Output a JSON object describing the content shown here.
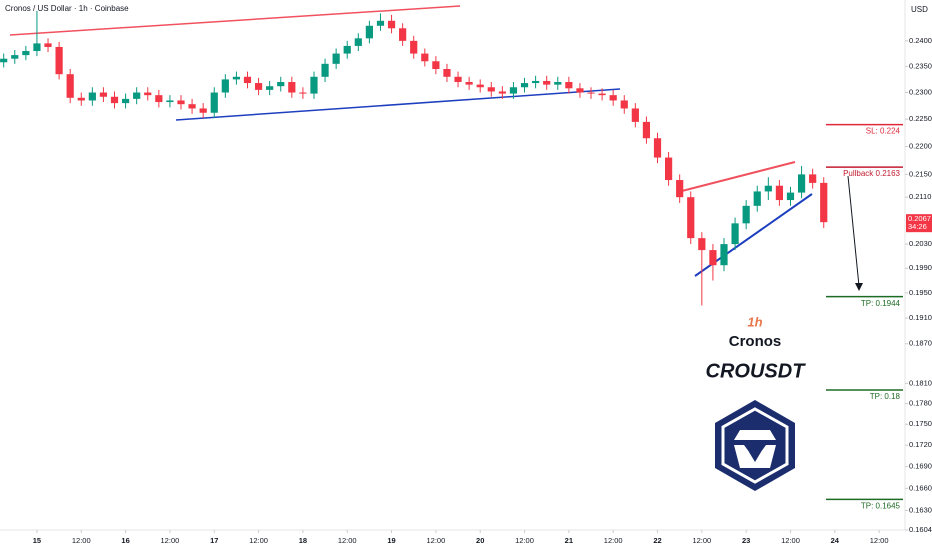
{
  "chart_data": {
    "type": "candlestick",
    "title": "Cronos / US Dollar · 1h · Coinbase",
    "currency": "USD",
    "log_scale": true,
    "up_color": "#089981",
    "down_color": "#f23645",
    "x": [
      -9,
      -6,
      -3,
      0,
      3,
      6,
      9,
      12,
      15,
      18,
      21,
      24,
      27,
      30,
      33,
      36,
      39,
      42,
      45,
      48,
      51,
      54,
      57,
      60,
      63,
      66,
      69,
      72,
      75,
      78,
      81,
      84,
      87,
      90,
      93,
      96,
      99,
      102,
      105,
      108,
      111,
      114,
      117,
      120,
      123,
      126,
      129,
      132,
      135,
      138,
      141,
      144,
      147,
      150,
      153,
      156,
      159,
      162,
      165,
      168,
      171,
      174,
      177,
      180,
      183,
      186,
      189,
      192,
      195,
      198,
      201,
      204,
      207,
      210,
      213
    ],
    "open": [
      0.2358,
      0.2365,
      0.2372,
      0.238,
      0.2395,
      0.2388,
      0.2335,
      0.229,
      0.2285,
      0.23,
      0.2292,
      0.228,
      0.2288,
      0.23,
      0.2295,
      0.2282,
      0.2285,
      0.2278,
      0.227,
      0.2262,
      0.23,
      0.2325,
      0.233,
      0.2318,
      0.2305,
      0.2312,
      0.232,
      0.23,
      0.2298,
      0.233,
      0.2355,
      0.2375,
      0.239,
      0.2405,
      0.243,
      0.244,
      0.2425,
      0.24,
      0.2375,
      0.236,
      0.2345,
      0.233,
      0.232,
      0.2315,
      0.231,
      0.2302,
      0.2298,
      0.231,
      0.2318,
      0.2322,
      0.2315,
      0.232,
      0.2308,
      0.23,
      0.2298,
      0.2295,
      0.2285,
      0.227,
      0.2245,
      0.2215,
      0.218,
      0.214,
      0.211,
      0.204,
      0.202,
      0.1995,
      0.203,
      0.2065,
      0.2095,
      0.212,
      0.213,
      0.2105,
      0.2118,
      0.215,
      0.2135
    ],
    "high": [
      0.2375,
      0.2382,
      0.239,
      0.246,
      0.2405,
      0.2398,
      0.2345,
      0.23,
      0.231,
      0.231,
      0.2302,
      0.2298,
      0.231,
      0.231,
      0.2305,
      0.2295,
      0.2295,
      0.2288,
      0.228,
      0.231,
      0.2335,
      0.234,
      0.234,
      0.2328,
      0.2322,
      0.233,
      0.233,
      0.231,
      0.234,
      0.2365,
      0.2385,
      0.24,
      0.2415,
      0.244,
      0.2455,
      0.2452,
      0.2435,
      0.241,
      0.2385,
      0.237,
      0.2355,
      0.234,
      0.233,
      0.2325,
      0.232,
      0.2312,
      0.232,
      0.2328,
      0.2332,
      0.2332,
      0.233,
      0.233,
      0.2318,
      0.231,
      0.2308,
      0.2305,
      0.2295,
      0.228,
      0.2255,
      0.2225,
      0.219,
      0.215,
      0.212,
      0.205,
      0.203,
      0.204,
      0.2075,
      0.2105,
      0.213,
      0.2145,
      0.214,
      0.2128,
      0.2165,
      0.216,
      0.2145
    ],
    "low": [
      0.2348,
      0.2355,
      0.2362,
      0.237,
      0.2378,
      0.2325,
      0.228,
      0.2275,
      0.2275,
      0.2282,
      0.227,
      0.227,
      0.2278,
      0.2285,
      0.2272,
      0.2272,
      0.2268,
      0.226,
      0.2252,
      0.2252,
      0.229,
      0.2315,
      0.2308,
      0.2295,
      0.2295,
      0.2302,
      0.229,
      0.2288,
      0.2288,
      0.232,
      0.2345,
      0.2365,
      0.238,
      0.2395,
      0.242,
      0.2415,
      0.239,
      0.2365,
      0.235,
      0.2335,
      0.232,
      0.231,
      0.2305,
      0.23,
      0.2292,
      0.2288,
      0.2288,
      0.23,
      0.2308,
      0.2305,
      0.2305,
      0.2298,
      0.229,
      0.2288,
      0.2285,
      0.2275,
      0.226,
      0.2235,
      0.2205,
      0.217,
      0.213,
      0.21,
      0.203,
      0.193,
      0.197,
      0.1985,
      0.202,
      0.2055,
      0.2085,
      0.2105,
      0.2095,
      0.2095,
      0.2108,
      0.2125,
      0.2057
    ],
    "close": [
      0.2365,
      0.2372,
      0.238,
      0.2395,
      0.2388,
      0.2335,
      0.229,
      0.2285,
      0.23,
      0.2292,
      0.228,
      0.2288,
      0.23,
      0.2295,
      0.2282,
      0.2285,
      0.2278,
      0.227,
      0.2262,
      0.23,
      0.2325,
      0.233,
      0.2318,
      0.2305,
      0.2312,
      0.232,
      0.23,
      0.2298,
      0.233,
      0.2355,
      0.2375,
      0.239,
      0.2405,
      0.243,
      0.244,
      0.2425,
      0.24,
      0.2375,
      0.236,
      0.2345,
      0.233,
      0.232,
      0.2315,
      0.231,
      0.2302,
      0.2298,
      0.231,
      0.2318,
      0.2322,
      0.2315,
      0.232,
      0.2308,
      0.23,
      0.2298,
      0.2295,
      0.2285,
      0.227,
      0.2245,
      0.2215,
      0.218,
      0.214,
      0.211,
      0.204,
      0.202,
      0.1995,
      0.203,
      0.2065,
      0.2095,
      0.212,
      0.213,
      0.2105,
      0.2118,
      0.215,
      0.2135,
      0.2067
    ],
    "xlim": [
      -10,
      235
    ],
    "xticks": [
      {
        "value": 0,
        "label": "15"
      },
      {
        "value": 12,
        "label": "12:00"
      },
      {
        "value": 24,
        "label": "16"
      },
      {
        "value": 36,
        "label": "12:00"
      },
      {
        "value": 48,
        "label": "17"
      },
      {
        "value": 60,
        "label": "12:00"
      },
      {
        "value": 72,
        "label": "18"
      },
      {
        "value": 84,
        "label": "12:00"
      },
      {
        "value": 96,
        "label": "19"
      },
      {
        "value": 108,
        "label": "12:00"
      },
      {
        "value": 120,
        "label": "20"
      },
      {
        "value": 132,
        "label": "12:00"
      },
      {
        "value": 144,
        "label": "21"
      },
      {
        "value": 156,
        "label": "12:00"
      },
      {
        "value": 168,
        "label": "22"
      },
      {
        "value": 180,
        "label": "12:00"
      },
      {
        "value": 192,
        "label": "23"
      },
      {
        "value": 204,
        "label": "12:00"
      },
      {
        "value": 216,
        "label": "24"
      },
      {
        "value": 228,
        "label": "12:00"
      }
    ],
    "ylim": [
      0.1604,
      0.2474
    ],
    "yticks": [
      {
        "value": 0.24,
        "label": "0.2400"
      },
      {
        "value": 0.235,
        "label": "0.2350"
      },
      {
        "value": 0.23,
        "label": "0.2300"
      },
      {
        "value": 0.225,
        "label": "0.2250"
      },
      {
        "value": 0.22,
        "label": "0.2200"
      },
      {
        "value": 0.215,
        "label": "0.2150"
      },
      {
        "value": 0.211,
        "label": "0.2110"
      },
      {
        "value": 0.203,
        "label": "0.2030"
      },
      {
        "value": 0.199,
        "label": "0.1990"
      },
      {
        "value": 0.195,
        "label": "0.1950"
      },
      {
        "value": 0.191,
        "label": "0.1910"
      },
      {
        "value": 0.187,
        "label": "0.1870"
      },
      {
        "value": 0.181,
        "label": "0.1810"
      },
      {
        "value": 0.178,
        "label": "0.1780"
      },
      {
        "value": 0.175,
        "label": "0.1750"
      },
      {
        "value": 0.172,
        "label": "0.1720"
      },
      {
        "value": 0.169,
        "label": "0.1690"
      },
      {
        "value": 0.166,
        "label": "0.1660"
      },
      {
        "value": 0.163,
        "label": "0.1630"
      },
      {
        "value": 0.1604,
        "label": "0.1604"
      }
    ],
    "last_price": 0.2067,
    "countdown": "34:26",
    "levels": [
      {
        "label": "SL: 0.224",
        "value": 0.224,
        "color": "#e0283a"
      },
      {
        "label": "Pullback 0.2163",
        "value": 0.2163,
        "color": "#c21b2f"
      },
      {
        "label": "TP: 0.1944",
        "value": 0.1944,
        "color": "#1e6b24"
      },
      {
        "label": "TP: 0.18",
        "value": 0.18,
        "color": "#1e6b24"
      },
      {
        "label": "TP: 0.1645",
        "value": 0.1645,
        "color": "#1e6b24"
      }
    ],
    "watermark": {
      "interval": "1h",
      "name": "Cronos",
      "symbol": "CROUSDT"
    }
  }
}
